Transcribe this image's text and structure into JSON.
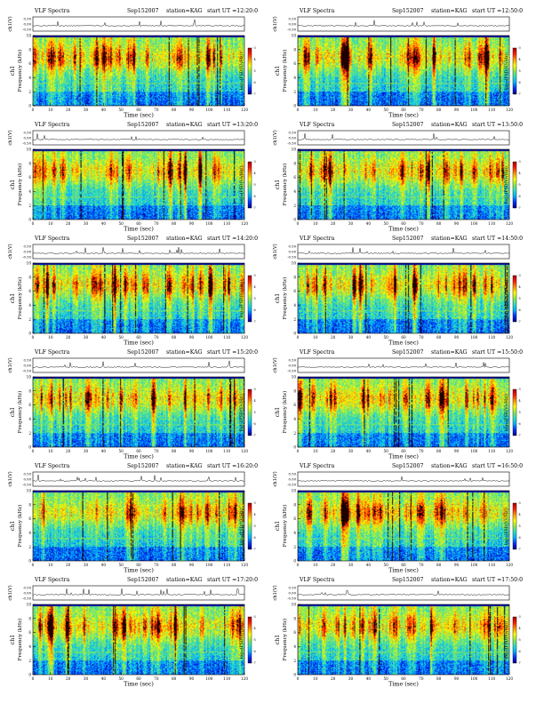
{
  "common": {
    "title_left": "VLF Spectra",
    "date": "Sep152007",
    "station": "station=KAG",
    "ut_prefix": "start  UT  =",
    "top_ylabel": "ch1(V)",
    "top_ticks": [
      "0.50",
      "0.00",
      "-0.50"
    ],
    "ylabel_ch": "ch1",
    "ylabel": "Frequency  (kHz)",
    "yticks": [
      "0",
      "2",
      "4",
      "6",
      "8",
      "10"
    ],
    "xticks": [
      "0",
      "10",
      "20",
      "30",
      "40",
      "50",
      "60",
      "70",
      "80",
      "90",
      "100",
      "110",
      "120"
    ],
    "xlabel": "Time  (sec)",
    "colorbar_label": "log₁₀(PSD(V/√Hz))",
    "colorbar_ticks": [
      "-3",
      "-4",
      "-5",
      "-6",
      "-7"
    ],
    "colormap": [
      "#00008f",
      "#0033ff",
      "#00b4ff",
      "#2fe0c0",
      "#8fe84a",
      "#ffff00",
      "#ff9a00",
      "#ff2000",
      "#b00000",
      "#ffffff"
    ],
    "waveform_color": "#000000"
  },
  "panels": [
    {
      "id": "p1",
      "ut": "12:20:0"
    },
    {
      "id": "p2",
      "ut": "12:50:0"
    },
    {
      "id": "p3",
      "ut": "13:20:0"
    },
    {
      "id": "p4",
      "ut": "13:50:0"
    },
    {
      "id": "p5",
      "ut": "14:20:0"
    },
    {
      "id": "p6",
      "ut": "14:50:0"
    },
    {
      "id": "p7",
      "ut": "15:20:0"
    },
    {
      "id": "p8",
      "ut": "15:50:0"
    },
    {
      "id": "p9",
      "ut": "16:20:0"
    },
    {
      "id": "p10",
      "ut": "16:50:0"
    },
    {
      "id": "p11",
      "ut": "17:20:0"
    },
    {
      "id": "p12",
      "ut": "17:50:0"
    }
  ],
  "chart_data": {
    "type": "heatmap",
    "x_range": [
      0,
      120
    ],
    "y_range": [
      0,
      10
    ],
    "waveform_y_range": [
      -0.5,
      0.5
    ],
    "colorbar_range": [
      -7,
      -3
    ],
    "xlabel": "Time  (sec)",
    "ylabel": "Frequency  (kHz)",
    "panels_start_ut": [
      "12:20:0",
      "12:50:0",
      "13:20:0",
      "13:50:0",
      "14:20:0",
      "14:50:0",
      "15:20:0",
      "15:50:0",
      "16:20:0",
      "16:50:0",
      "17:20:0",
      "17:50:0"
    ]
  }
}
